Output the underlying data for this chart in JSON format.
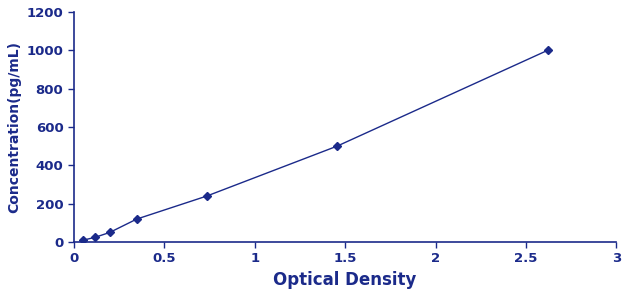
{
  "x": [
    0.052,
    0.118,
    0.198,
    0.348,
    0.735,
    1.455,
    2.62
  ],
  "y": [
    10,
    25,
    50,
    120,
    240,
    500,
    1000
  ],
  "line_color": "#1b2a8a",
  "marker_color": "#1b2a8a",
  "marker": "D",
  "marker_size": 4.5,
  "line_width": 1.0,
  "xlabel": "Optical Density",
  "ylabel": "Concentration(pg/mL)",
  "xlim": [
    0,
    3
  ],
  "ylim": [
    0,
    1200
  ],
  "xticks": [
    0,
    0.5,
    1,
    1.5,
    2,
    2.5,
    3
  ],
  "yticks": [
    0,
    200,
    400,
    600,
    800,
    1000,
    1200
  ],
  "xlabel_fontsize": 12,
  "ylabel_fontsize": 10,
  "tick_fontsize": 9.5,
  "xlabel_fontweight": "bold",
  "ylabel_fontweight": "bold"
}
